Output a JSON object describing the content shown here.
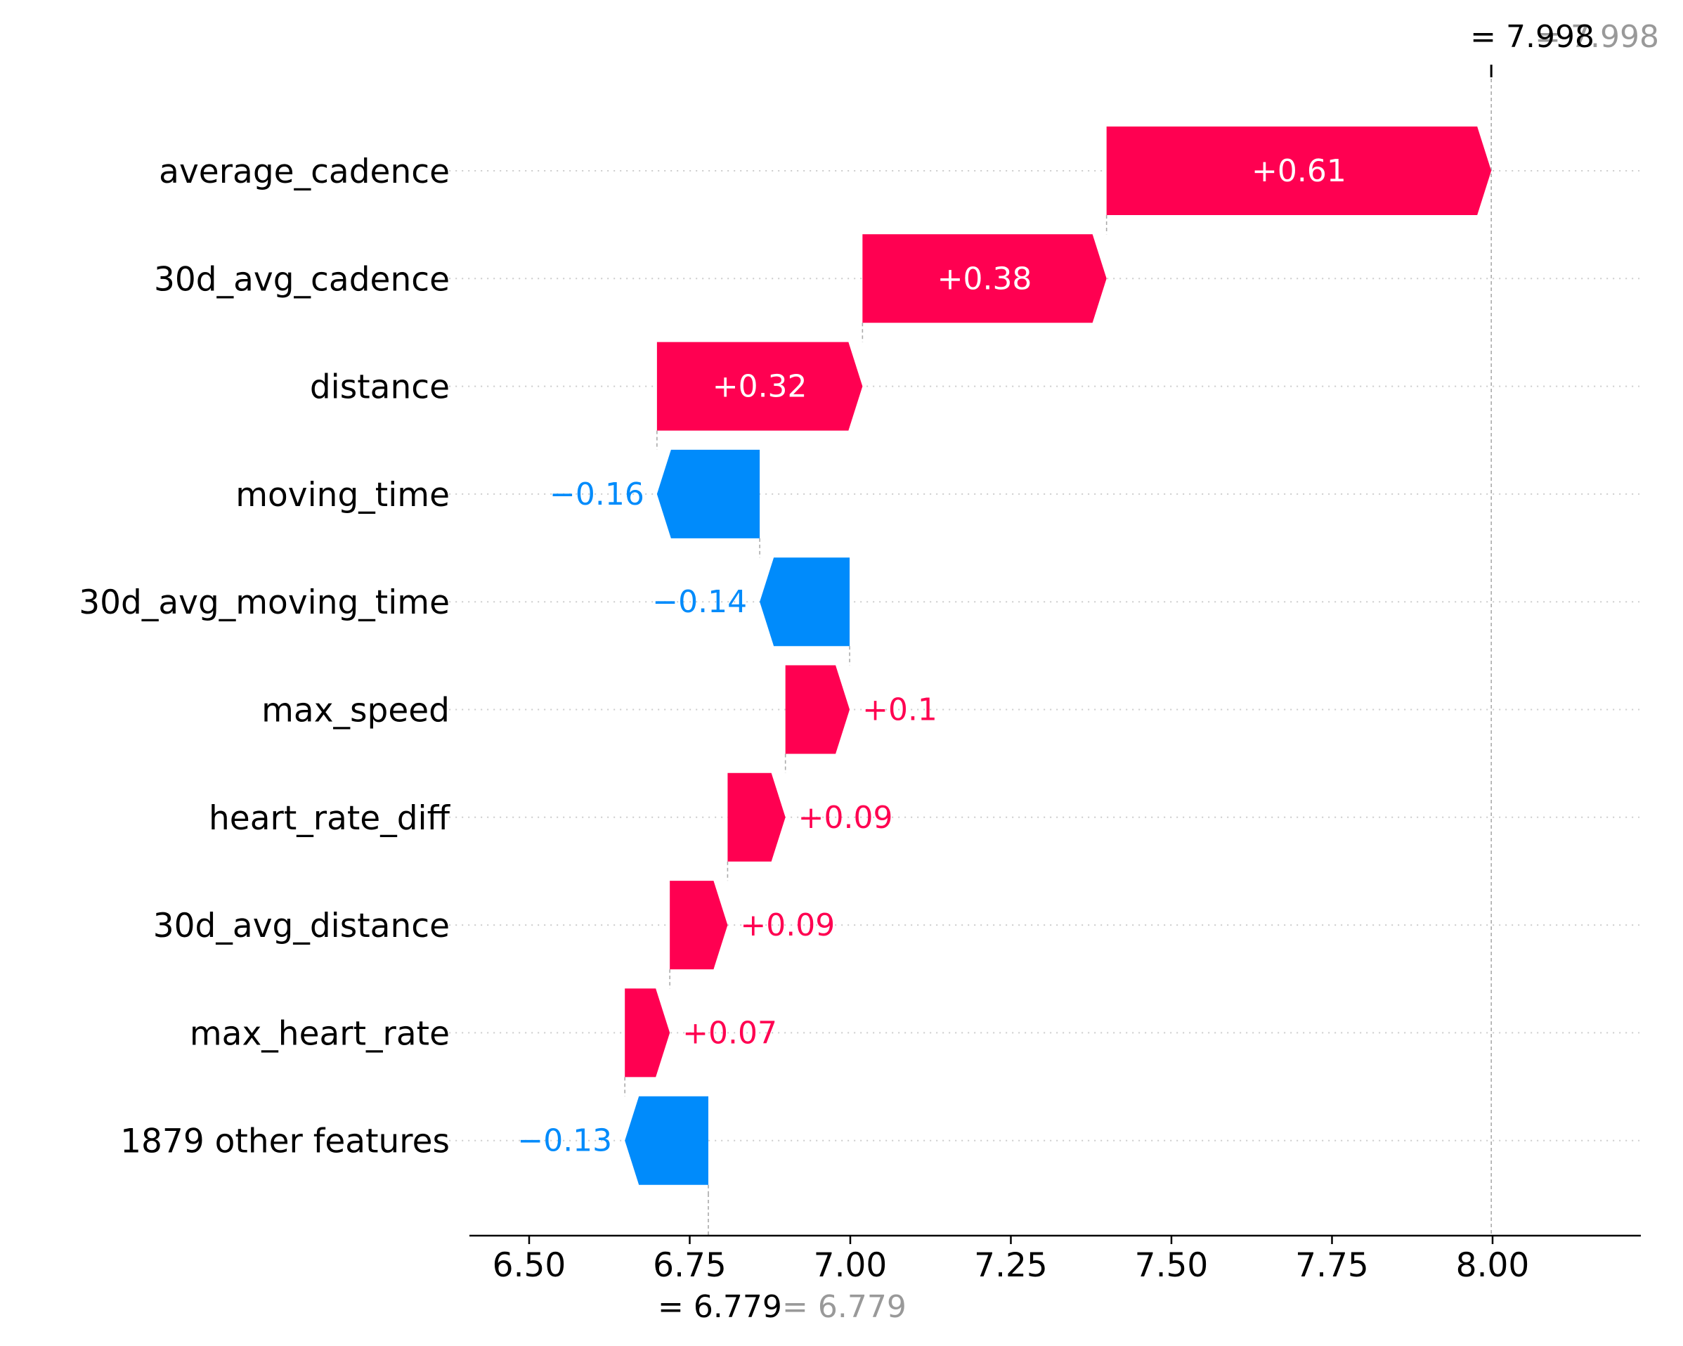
{
  "chart_data": {
    "type": "waterfall",
    "title": "",
    "xlabel": "",
    "ylabel": "",
    "xlim": [
      6.415,
      8.23
    ],
    "x_ticks": [
      "6.50",
      "6.75",
      "7.00",
      "7.25",
      "7.50",
      "7.75",
      "8.00"
    ],
    "x_tick_values": [
      6.5,
      6.75,
      7.0,
      7.25,
      7.5,
      7.75,
      8.0
    ],
    "base_value": 6.779,
    "prediction": 7.998,
    "base_annotation": "= 6.779",
    "base_annotation_grey": "= 6.779",
    "prediction_annotation": "= 7.998",
    "prediction_annotation_grey": "= 7.998",
    "colors": {
      "positive": "#ff0051",
      "negative": "#008bfb",
      "grey": "#999999"
    },
    "features": [
      {
        "name": "average_cadence",
        "value": 0.61,
        "label": "+0.61"
      },
      {
        "name": "30d_avg_cadence",
        "value": 0.38,
        "label": "+0.38"
      },
      {
        "name": "distance",
        "value": 0.32,
        "label": "+0.32"
      },
      {
        "name": "moving_time",
        "value": -0.16,
        "label": "−0.16"
      },
      {
        "name": "30d_avg_moving_time",
        "value": -0.14,
        "label": "−0.14"
      },
      {
        "name": "max_speed",
        "value": 0.1,
        "label": "+0.1"
      },
      {
        "name": "heart_rate_diff",
        "value": 0.09,
        "label": "+0.09"
      },
      {
        "name": "30d_avg_distance",
        "value": 0.09,
        "label": "+0.09"
      },
      {
        "name": "max_heart_rate",
        "value": 0.07,
        "label": "+0.07"
      },
      {
        "name": "1879 other features",
        "value": -0.13,
        "label": "−0.13"
      }
    ]
  }
}
